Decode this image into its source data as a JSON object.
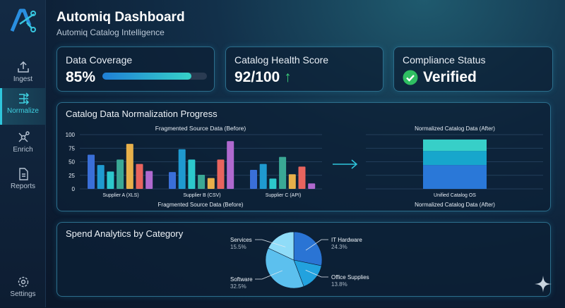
{
  "header": {
    "title": "Automiq Dashboard",
    "subtitle": "Automiq Catalog Intelligence"
  },
  "sidebar": {
    "items": [
      {
        "label": "Ingest",
        "icon": "upload-icon",
        "active": false
      },
      {
        "label": "Normalize",
        "icon": "normalize-icon",
        "active": true
      },
      {
        "label": "Enrich",
        "icon": "network-icon",
        "active": false
      },
      {
        "label": "Reports",
        "icon": "document-icon",
        "active": false
      }
    ],
    "settings_label": "Settings"
  },
  "kpis": {
    "coverage": {
      "label": "Data Coverage",
      "value": "85%",
      "progress": 85
    },
    "health": {
      "label": "Catalog Health Score",
      "value": "92/100",
      "trend": "up"
    },
    "compliance": {
      "label": "Compliance Status",
      "value": "Verified"
    }
  },
  "normalization": {
    "title": "Catalog Data Normalization Progress"
  },
  "chart_data": [
    {
      "type": "bar",
      "title": "Fragmented Source Data (Before)",
      "xlabel": "Fragmented Source Data (Before)",
      "categories": [
        "Supplier A (XLS)",
        "Supplier B (CSV)",
        "Supplier C (API)"
      ],
      "yticks": [
        "0",
        "25",
        "50",
        "75",
        "100"
      ],
      "ylim": [
        0,
        100
      ],
      "grid": true,
      "colors": [
        "#3a6fd8",
        "#1f9ad0",
        "#2cc8cc",
        "#3aa895",
        "#e8b04a",
        "#e8645e",
        "#b069cf"
      ],
      "groups": [
        [
          63,
          44,
          32,
          54,
          83,
          46,
          33
        ],
        [
          31,
          73,
          54,
          26,
          20,
          54,
          88
        ],
        [
          35,
          46,
          19,
          59,
          27,
          41,
          10
        ]
      ]
    },
    {
      "type": "bar",
      "stacked": true,
      "title": "Normalized Catalog Data (After)",
      "xlabel": "Normalized Catalog Data (After)",
      "categories": [
        "Unified Catalog OS"
      ],
      "ylim": [
        0,
        100
      ],
      "grid": true,
      "segments": [
        {
          "value": 44,
          "color": "#2a78d8"
        },
        {
          "value": 26,
          "color": "#17a6cc"
        },
        {
          "value": 21,
          "color": "#37cfc8"
        }
      ]
    },
    {
      "type": "pie",
      "title": "Spend Analytics by Category",
      "slices": [
        {
          "label": "IT Hardware",
          "value": 24.3,
          "display": "24.3%",
          "color": "#2a74d4"
        },
        {
          "label": "Office Supplies",
          "value": 13.8,
          "display": "13.8%",
          "color": "#22a2de"
        },
        {
          "label": "Software",
          "value": 32.5,
          "display": "32.5%",
          "color": "#5cc0ee"
        },
        {
          "label": "Services",
          "value": 15.5,
          "display": "15.5%",
          "color": "#8fdcf8"
        }
      ]
    }
  ]
}
